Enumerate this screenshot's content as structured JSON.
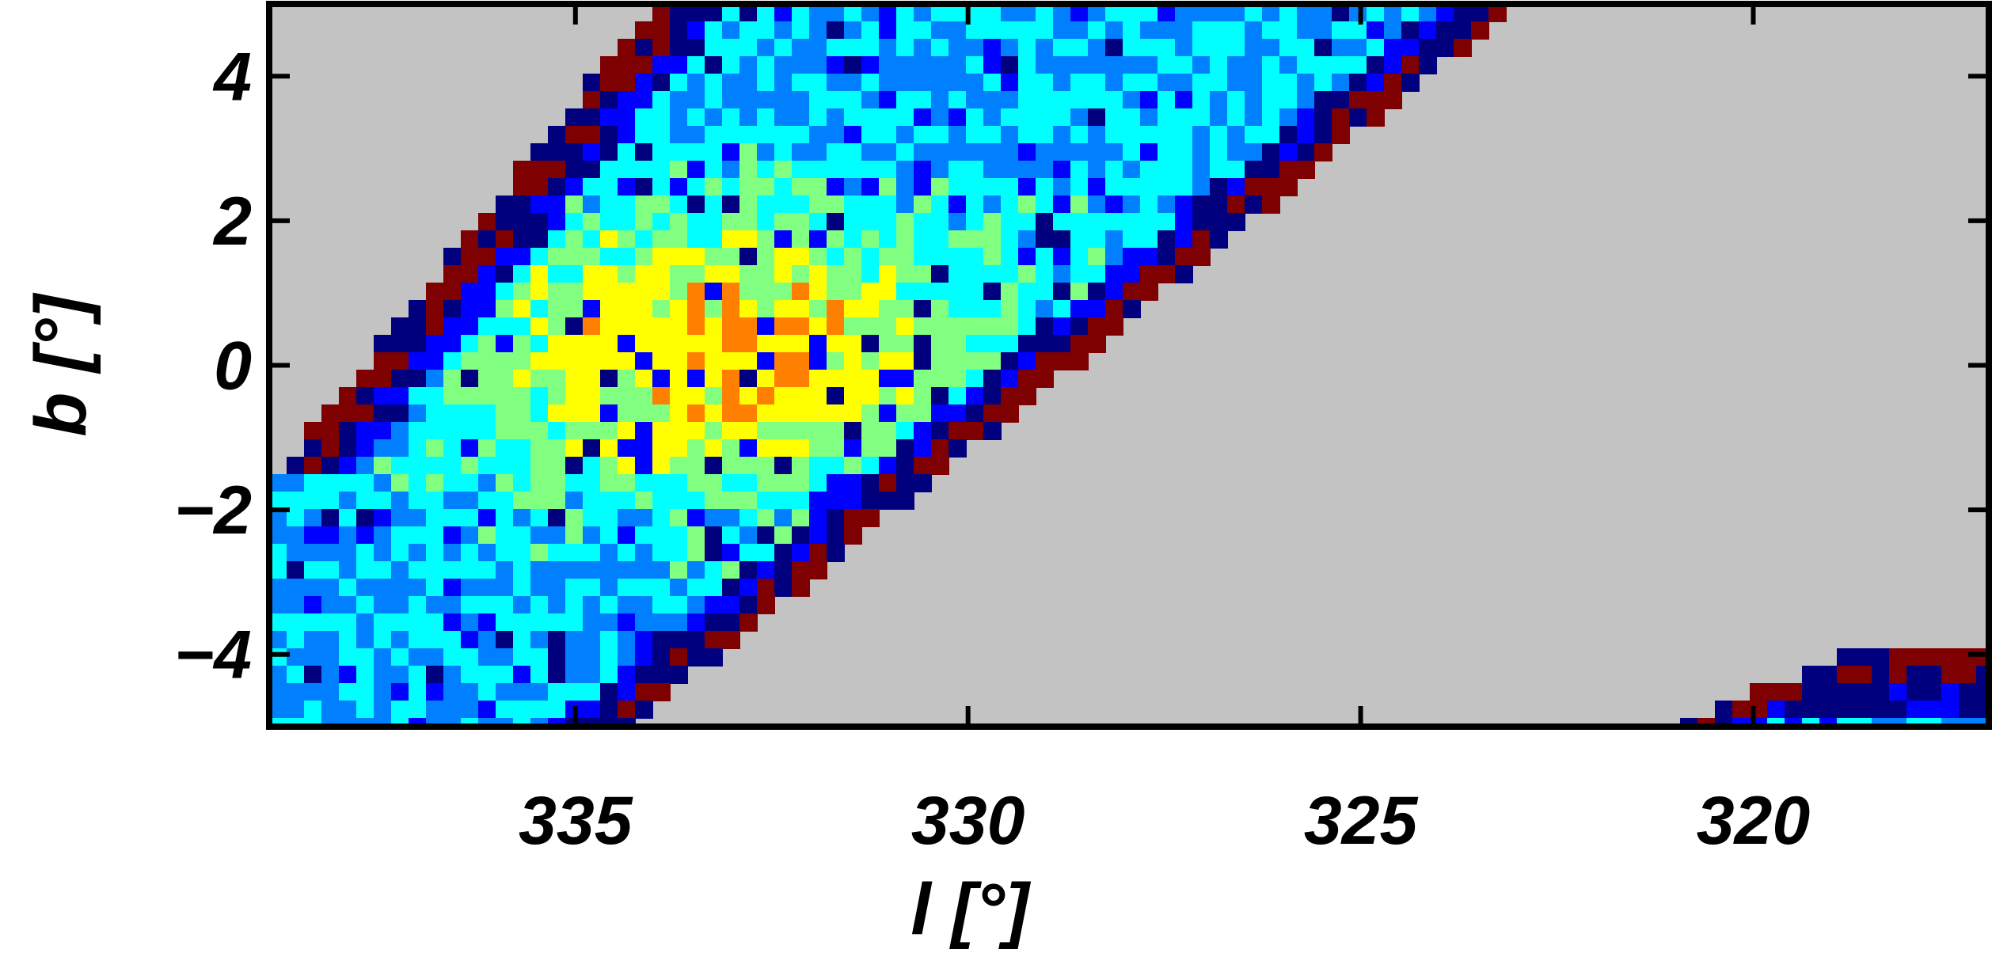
{
  "chart_data": {
    "type": "heatmap",
    "title": "",
    "xlabel": "l [°]",
    "ylabel": "b [°]",
    "xlim": [
      338.9,
      317.0
    ],
    "ylim": [
      -5,
      5
    ],
    "x_reversed": true,
    "x_ticks": [
      335,
      330,
      325,
      320
    ],
    "x_tick_labels": [
      "335",
      "330",
      "325",
      "320"
    ],
    "y_ticks": [
      4,
      2,
      0,
      -2,
      -4
    ],
    "y_tick_labels": [
      "4",
      "2",
      "0",
      "−2",
      "−4"
    ],
    "grid": false,
    "legend": "none",
    "background_color": "#c3c3c3",
    "colormap": [
      "#00007f",
      "#0000ff",
      "#0080ff",
      "#00ffff",
      "#80ff80",
      "#ffff00",
      "#ff8000",
      "#ff0000",
      "#7f0000"
    ],
    "regions": [
      {
        "name": "main-strip",
        "description_value_range": "map values across colormap",
        "corners_lb": [
          [
            338.9,
            -3.7
          ],
          [
            338.9,
            -1.6
          ],
          [
            334.0,
            5.0
          ],
          [
            323.0,
            5.0
          ],
          [
            334.3,
            -5.0
          ]
        ]
      },
      {
        "name": "corner-strip",
        "corners_lb": [
          [
            320.9,
            -5.0
          ],
          [
            318.5,
            -3.8
          ],
          [
            317.0,
            -3.8
          ],
          [
            317.0,
            -5.0
          ]
        ]
      }
    ]
  }
}
